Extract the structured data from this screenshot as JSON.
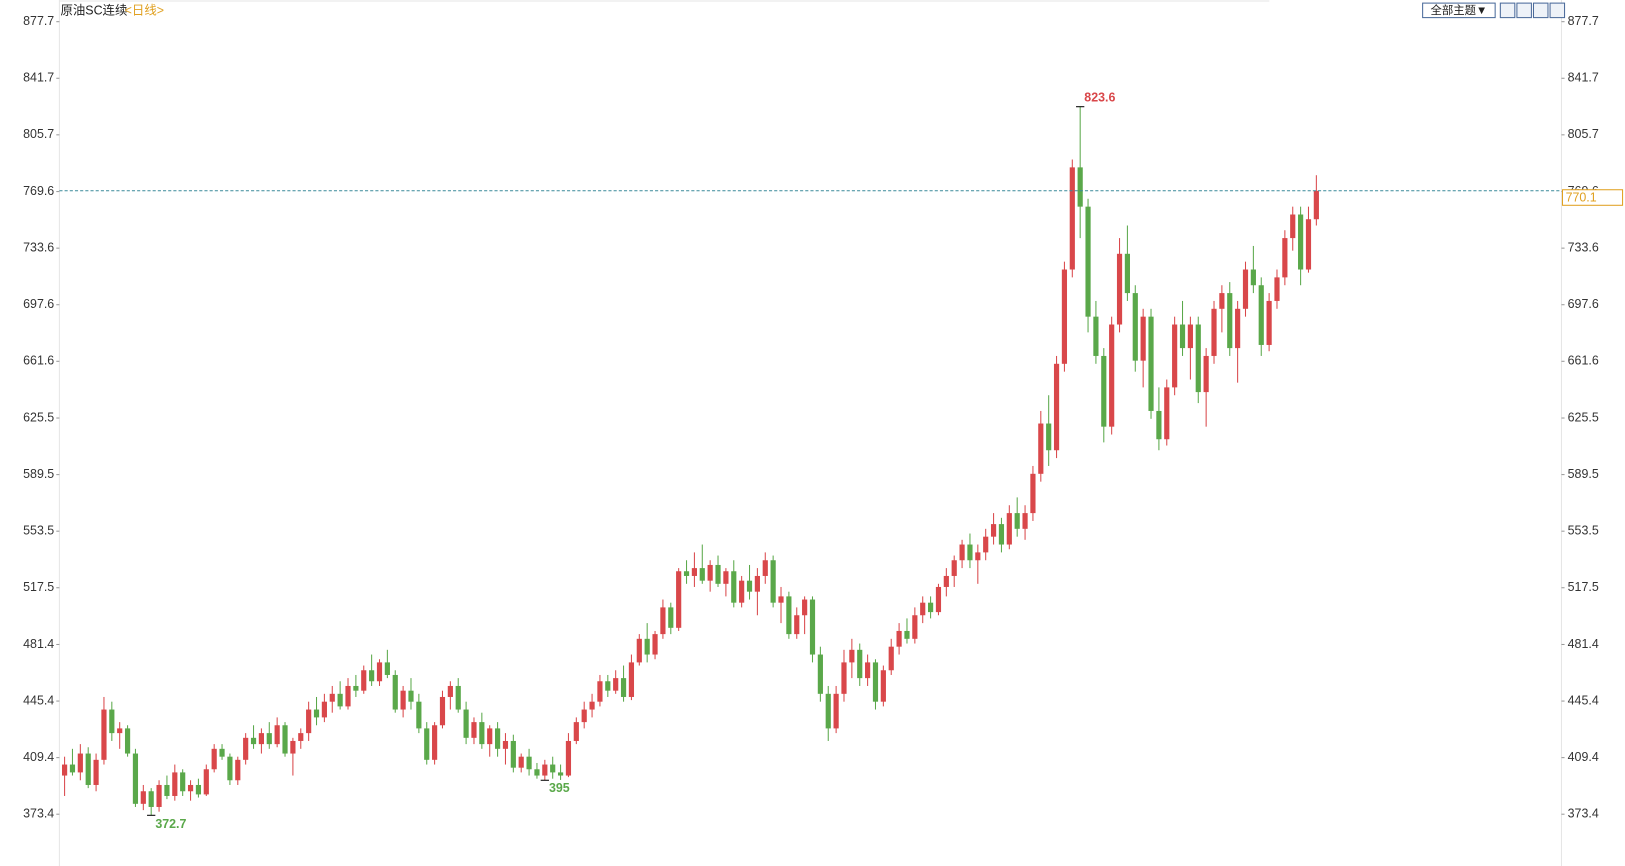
{
  "chart_data": {
    "type": "candlestick",
    "title": "原油SC连续",
    "subtitle": "<日线>",
    "button": "全部主题▼",
    "ylim": [
      341.1,
      891.5
    ],
    "yticks": [
      {
        "value": 877.7,
        "label": "877.7"
      },
      {
        "value": 841.7,
        "label": "841.7"
      },
      {
        "value": 805.7,
        "label": "805.7"
      },
      {
        "value": 769.6,
        "label": "769.6"
      },
      {
        "value": 733.6,
        "label": "733.6"
      },
      {
        "value": 697.6,
        "label": "697.6"
      },
      {
        "value": 661.6,
        "label": "661.6"
      },
      {
        "value": 625.5,
        "label": "625.5"
      },
      {
        "value": 589.5,
        "label": "589.5"
      },
      {
        "value": 553.5,
        "label": "553.5"
      },
      {
        "value": 517.5,
        "label": "517.5"
      },
      {
        "value": 481.4,
        "label": "481.4"
      },
      {
        "value": 445.4,
        "label": "445.4"
      },
      {
        "value": 409.4,
        "label": "409.4"
      },
      {
        "value": 373.4,
        "label": "373.4"
      }
    ],
    "grid": false,
    "up_color": "#d9474a",
    "down_color": "#5aa84a",
    "last_color": "#e0a020",
    "open": [
      398,
      405,
      400,
      412,
      392,
      408,
      440,
      425,
      428,
      412,
      380,
      388,
      378,
      392,
      385,
      400,
      388,
      392,
      386,
      402,
      415,
      410,
      395,
      408,
      422,
      418,
      425,
      418,
      430,
      412,
      420,
      425,
      440,
      435,
      445,
      450,
      442,
      455,
      452,
      465,
      458,
      470,
      462,
      440,
      452,
      445,
      428,
      408,
      430,
      448,
      455,
      440,
      422,
      432,
      418,
      428,
      415,
      420,
      403,
      410,
      402,
      398,
      405,
      400,
      398,
      420,
      432,
      440,
      445,
      458,
      452,
      460,
      448,
      470,
      485,
      475,
      488,
      505,
      492,
      528,
      525,
      530,
      522,
      532,
      520,
      528,
      508,
      522,
      515,
      525,
      535,
      508,
      512,
      488,
      500,
      510,
      475,
      450,
      428,
      450,
      470,
      478,
      460,
      470,
      445,
      465,
      480,
      490,
      485,
      500,
      508,
      502,
      518,
      525,
      535,
      545,
      535,
      540,
      550,
      558,
      545,
      565,
      555,
      565,
      590,
      622,
      605,
      660,
      720,
      785,
      760,
      690,
      665,
      620,
      685,
      730,
      705,
      662,
      690,
      630,
      612,
      645,
      685,
      670,
      685,
      642,
      665,
      695,
      705,
      670,
      695,
      720,
      710,
      672,
      700,
      715,
      740,
      755,
      720,
      752
    ],
    "high": [
      410,
      415,
      418,
      416,
      412,
      448,
      445,
      432,
      430,
      415,
      392,
      390,
      395,
      398,
      405,
      402,
      395,
      396,
      405,
      418,
      418,
      412,
      410,
      425,
      430,
      428,
      432,
      435,
      432,
      422,
      428,
      445,
      448,
      450,
      455,
      458,
      460,
      462,
      468,
      475,
      472,
      478,
      465,
      455,
      460,
      450,
      432,
      432,
      452,
      458,
      460,
      445,
      435,
      438,
      430,
      432,
      425,
      424,
      412,
      415,
      406,
      408,
      410,
      405,
      425,
      435,
      445,
      450,
      462,
      462,
      465,
      468,
      475,
      488,
      495,
      490,
      510,
      508,
      530,
      535,
      540,
      545,
      535,
      538,
      530,
      535,
      525,
      532,
      530,
      540,
      538,
      518,
      515,
      505,
      512,
      512,
      480,
      455,
      455,
      478,
      485,
      482,
      475,
      472,
      468,
      485,
      495,
      498,
      505,
      512,
      512,
      520,
      530,
      538,
      548,
      552,
      545,
      555,
      565,
      562,
      570,
      575,
      570,
      595,
      630,
      640,
      665,
      725,
      790,
      823.6,
      765,
      700,
      670,
      690,
      740,
      748,
      710,
      695,
      695,
      645,
      650,
      690,
      700,
      690,
      690,
      670,
      700,
      710,
      712,
      700,
      725,
      735,
      715,
      705,
      720,
      745,
      760,
      760,
      760,
      780
    ],
    "low": [
      385,
      398,
      395,
      390,
      388,
      405,
      420,
      415,
      410,
      378,
      376,
      372.7,
      375,
      383,
      382,
      385,
      382,
      384,
      385,
      400,
      408,
      392,
      392,
      405,
      415,
      412,
      415,
      416,
      410,
      398,
      415,
      420,
      430,
      432,
      438,
      440,
      440,
      448,
      450,
      455,
      455,
      460,
      438,
      435,
      440,
      425,
      405,
      405,
      428,
      440,
      438,
      418,
      418,
      415,
      410,
      410,
      405,
      400,
      400,
      398,
      396,
      395,
      396,
      395.2,
      397,
      418,
      428,
      435,
      442,
      448,
      450,
      445,
      446,
      468,
      470,
      472,
      485,
      488,
      490,
      520,
      518,
      520,
      515,
      518,
      512,
      505,
      505,
      510,
      500,
      520,
      505,
      495,
      485,
      485,
      488,
      470,
      445,
      420,
      425,
      445,
      460,
      455,
      455,
      440,
      442,
      462,
      475,
      482,
      482,
      495,
      498,
      500,
      512,
      518,
      530,
      530,
      520,
      535,
      545,
      540,
      542,
      550,
      548,
      560,
      585,
      595,
      600,
      655,
      715,
      740,
      680,
      660,
      610,
      615,
      680,
      700,
      655,
      645,
      625,
      605,
      608,
      640,
      665,
      650,
      635,
      620,
      660,
      680,
      665,
      648,
      690,
      705,
      665,
      668,
      695,
      710,
      732,
      710,
      718,
      748
    ],
    "close": [
      405,
      400,
      412,
      392,
      408,
      440,
      425,
      428,
      412,
      380,
      388,
      378,
      392,
      385,
      400,
      388,
      392,
      386,
      402,
      415,
      410,
      395,
      408,
      422,
      418,
      425,
      418,
      430,
      412,
      420,
      425,
      440,
      435,
      445,
      450,
      442,
      455,
      452,
      465,
      458,
      470,
      462,
      440,
      452,
      445,
      428,
      408,
      430,
      448,
      455,
      440,
      422,
      432,
      418,
      428,
      415,
      420,
      403,
      410,
      402,
      398,
      405,
      400,
      398,
      420,
      432,
      440,
      445,
      458,
      452,
      460,
      448,
      470,
      485,
      475,
      488,
      505,
      492,
      528,
      525,
      530,
      522,
      532,
      520,
      528,
      508,
      522,
      515,
      525,
      535,
      508,
      512,
      488,
      500,
      510,
      475,
      450,
      428,
      450,
      470,
      478,
      460,
      470,
      445,
      465,
      480,
      490,
      485,
      500,
      508,
      502,
      518,
      525,
      535,
      545,
      535,
      540,
      550,
      558,
      545,
      565,
      555,
      565,
      590,
      622,
      605,
      660,
      720,
      785,
      760,
      690,
      665,
      620,
      685,
      730,
      705,
      662,
      690,
      630,
      612,
      645,
      685,
      670,
      685,
      642,
      665,
      695,
      705,
      670,
      695,
      720,
      710,
      672,
      700,
      715,
      740,
      755,
      720,
      752,
      770.1
    ]
  }
}
